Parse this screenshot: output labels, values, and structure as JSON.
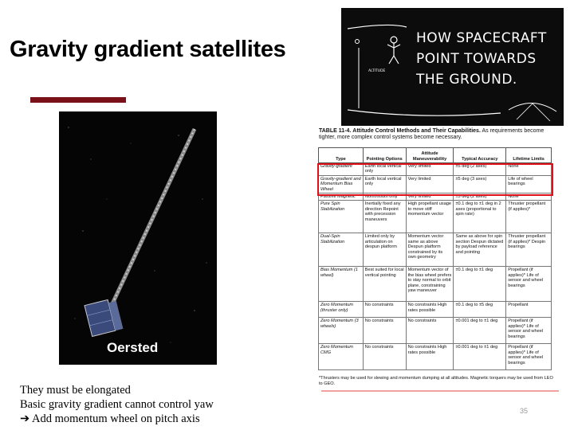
{
  "slide": {
    "title": "Gravity gradient satellites",
    "page_number": "35",
    "bullets": [
      "They must be elongated",
      "Basic gravity gradient cannot control yaw",
      "➔ Add momentum wheel on pitch axis"
    ]
  },
  "satellite_image": {
    "caption": "Oersted"
  },
  "comic": {
    "lines": [
      "HOW SPACECRAFT",
      "POINT TOWARDS",
      "THE GROUND."
    ],
    "small_label": "ALTITUDE"
  },
  "table": {
    "title_label": "TABLE 11-4.",
    "title_bold": "Attitude Control Methods and Their Capabilities.",
    "title_rest": "As requirements become tighter, more complex control systems become necessary.",
    "headers": [
      "Type",
      "Pointing Options",
      "Attitude Maneuverability",
      "Typical Accuracy",
      "Lifetime Limits"
    ],
    "rows": [
      [
        "Gravity-gradient",
        "Earth local vertical only",
        "Very limited",
        "±5 deg (2 axes)",
        "None"
      ],
      [
        "Gravity-gradient and Momentum Bias Wheel",
        "Earth local vertical only",
        "Very limited",
        "±5 deg (3 axes)",
        "Life of wheel bearings"
      ],
      [
        "Passive Magnetic",
        "North/south only",
        "Very limited",
        "±5 deg (2 axes)",
        "None"
      ],
      [
        "Pure Spin Stabilization",
        "Inertially fixed any direction Repoint with precession maneuvers",
        "High propellant usage to move stiff momentum vector",
        "±0.1 deg to ±1 deg in 2 axes (proportional to spin rate)",
        "Thruster propellant (if applies)*"
      ],
      [
        "Dual-Spin Stabilization",
        "Limited only by articulation on despun platform",
        "Momentum vector same as above Despun platform constrained by its own geometry",
        "Same as above for spin section Despun dictated by payload reference and pointing",
        "Thruster propellant (if applies)* Despin bearings"
      ],
      [
        "Bias Momentum (1 wheel)",
        "Best suited for local vertical pointing",
        "Momentum vector of the bias wheel prefers to stay normal to orbit plane, constraining yaw maneuver",
        "±0.1 deg to ±1 deg",
        "Propellant (if applies)* Life of sensor and wheel bearings"
      ],
      [
        "Zero Momentum (thruster only)",
        "No constraints",
        "No constraints High rates possible",
        "±0.1 deg to ±5 deg",
        "Propellant"
      ],
      [
        "Zero Momentum (3 wheels)",
        "No constraints",
        "No constraints",
        "±0.001 deg to ±1 deg",
        "Propellant (if applies)* Life of sensor and wheel bearings"
      ],
      [
        "Zero Momentum CMG",
        "No constraints",
        "No constraints High rates possible",
        "±0.001 deg to ±1 deg",
        "Propellant (if applies)* Life of sensor and wheel bearings"
      ]
    ],
    "footnote": "*Thrusters may be used for slewing and momentum dumping at all altitudes. Magnetic torquers may be used from LEO to GEO."
  }
}
